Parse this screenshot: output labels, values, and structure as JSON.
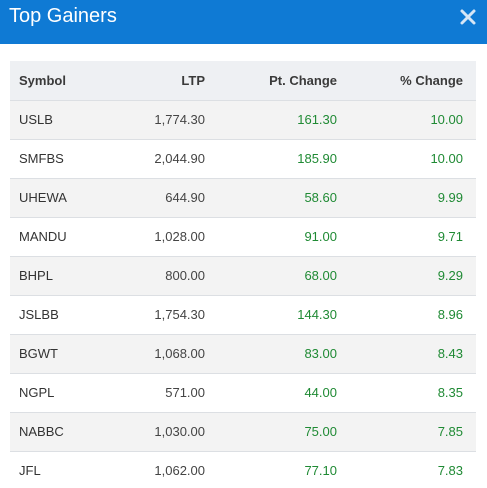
{
  "header": {
    "title": "Top Gainers",
    "close_icon": "close-icon",
    "bg_color": "#0f7ad4"
  },
  "table": {
    "columns": [
      "Symbol",
      "LTP",
      "Pt. Change",
      "% Change"
    ],
    "positive_color": "#1f8a34",
    "rows": [
      {
        "symbol": "USLB",
        "ltp": "1,774.30",
        "pt_change": "161.30",
        "pct_change": "10.00"
      },
      {
        "symbol": "SMFBS",
        "ltp": "2,044.90",
        "pt_change": "185.90",
        "pct_change": "10.00"
      },
      {
        "symbol": "UHEWA",
        "ltp": "644.90",
        "pt_change": "58.60",
        "pct_change": "9.99"
      },
      {
        "symbol": "MANDU",
        "ltp": "1,028.00",
        "pt_change": "91.00",
        "pct_change": "9.71"
      },
      {
        "symbol": "BHPL",
        "ltp": "800.00",
        "pt_change": "68.00",
        "pct_change": "9.29"
      },
      {
        "symbol": "JSLBB",
        "ltp": "1,754.30",
        "pt_change": "144.30",
        "pct_change": "8.96"
      },
      {
        "symbol": "BGWT",
        "ltp": "1,068.00",
        "pt_change": "83.00",
        "pct_change": "8.43"
      },
      {
        "symbol": "NGPL",
        "ltp": "571.00",
        "pt_change": "44.00",
        "pct_change": "8.35"
      },
      {
        "symbol": "NABBC",
        "ltp": "1,030.00",
        "pt_change": "75.00",
        "pct_change": "7.85"
      },
      {
        "symbol": "JFL",
        "ltp": "1,062.00",
        "pt_change": "77.10",
        "pct_change": "7.83"
      }
    ]
  }
}
